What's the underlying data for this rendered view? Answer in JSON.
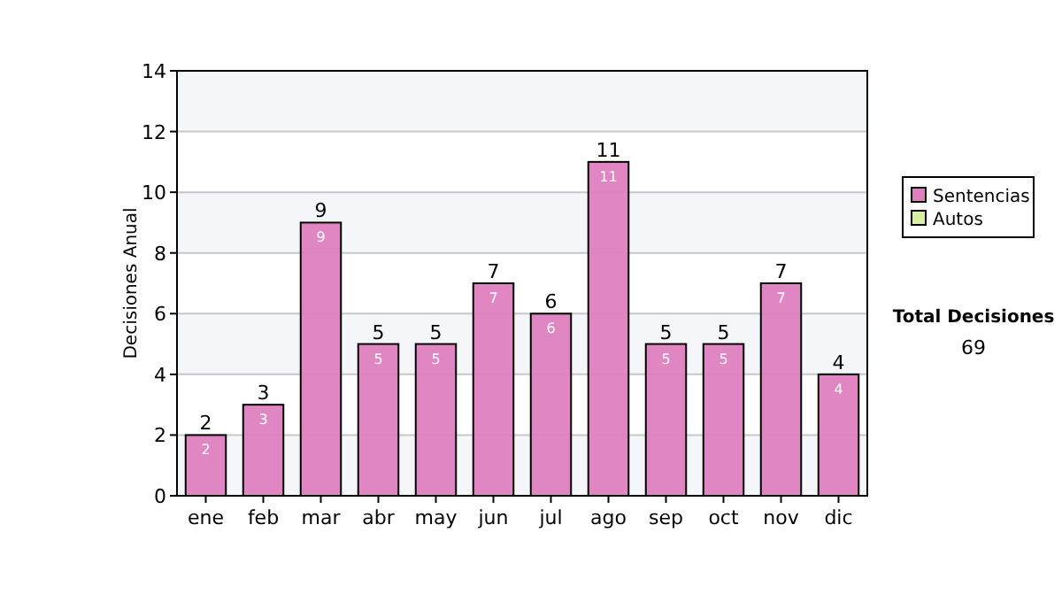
{
  "chart_data": {
    "type": "bar",
    "stacked": true,
    "ylabel": "Decisiones Anual",
    "categories": [
      "ene",
      "feb",
      "mar",
      "abr",
      "may",
      "jun",
      "jul",
      "ago",
      "sep",
      "oct",
      "nov",
      "dic"
    ],
    "series": [
      {
        "name": "Sentencias",
        "color": "#dd80c0",
        "values": [
          2,
          3,
          9,
          5,
          5,
          7,
          6,
          11,
          5,
          5,
          7,
          4
        ],
        "value_labels": [
          "2",
          "3",
          "9",
          "5",
          "5",
          "7",
          "6",
          "11",
          "5",
          "5",
          "7",
          "4"
        ]
      },
      {
        "name": "Autos",
        "color": "#d8f0a0",
        "values": [
          0,
          0,
          0,
          0,
          0,
          0,
          0,
          0,
          0,
          0,
          0,
          0
        ]
      }
    ],
    "totals": [
      "2",
      "3",
      "9",
      "5",
      "5",
      "7",
      "6",
      "11",
      "5",
      "5",
      "7",
      "4"
    ],
    "ylim": [
      0,
      14
    ],
    "yticks": [
      0,
      2,
      4,
      6,
      8,
      10,
      12,
      14
    ],
    "grid": "y",
    "legend": "right",
    "annotations": [
      "Total Decisiones",
      "69"
    ]
  }
}
